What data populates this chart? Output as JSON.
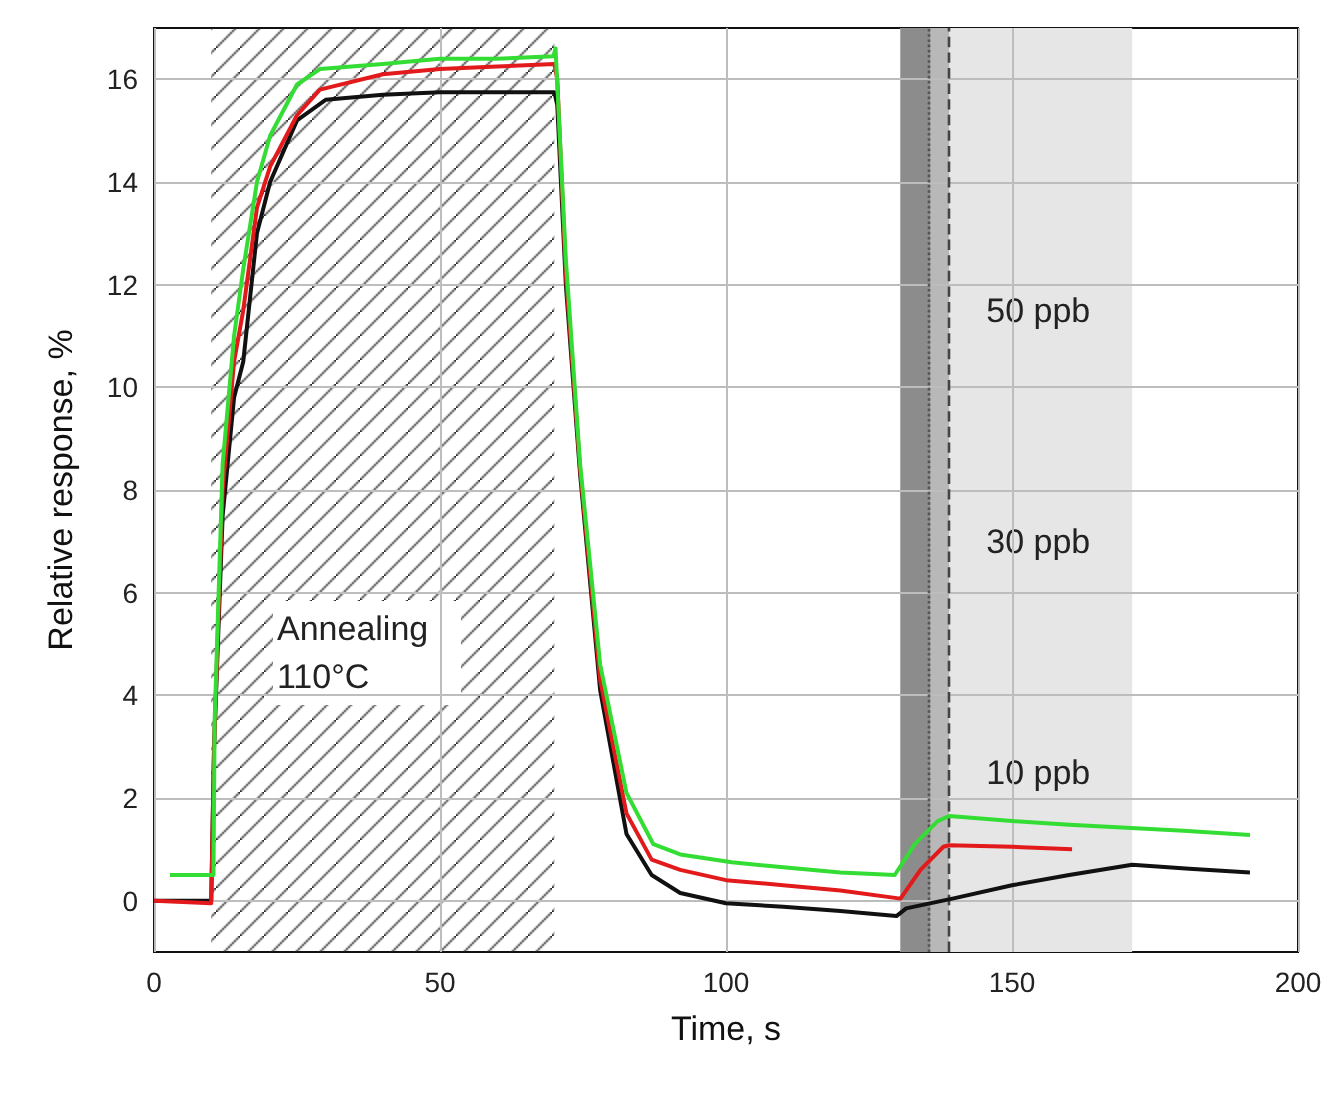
{
  "chart_data": {
    "type": "line",
    "xlabel": "Time, s",
    "ylabel": "Relative response, %",
    "xlim": [
      0,
      200
    ],
    "xticks": [
      0,
      50,
      100,
      150,
      200
    ],
    "ylim": [
      -1,
      17
    ],
    "yticks": [
      0,
      2,
      4,
      6,
      8,
      10,
      12,
      14,
      16
    ],
    "grid": true,
    "marker": "none",
    "line_style": "solid",
    "series": [
      {
        "color": "#111111",
        "x": [
          0,
          10,
          10.5,
          12,
          14,
          15.6,
          18,
          20.3,
          25,
          30,
          40,
          50,
          60,
          70,
          70.5,
          72,
          74.5,
          78,
          82.6,
          87,
          92,
          100,
          110,
          120,
          129.8,
          131.5,
          140,
          150,
          160,
          171,
          181,
          191.6
        ],
        "values": [
          0,
          0,
          3,
          7.5,
          9.8,
          10.5,
          13,
          14,
          15.2,
          15.6,
          15.7,
          15.75,
          15.75,
          15.75,
          15.5,
          12,
          8.3,
          4.1,
          1.3,
          0.5,
          0.15,
          -0.05,
          -0.12,
          -0.2,
          -0.3,
          -0.15,
          0.05,
          0.3,
          0.5,
          0.7,
          0.62,
          0.55
        ]
      },
      {
        "color": "#e31a1c",
        "x": [
          0,
          10,
          10.5,
          12,
          14,
          15.6,
          18,
          20.3,
          25,
          29,
          40,
          50,
          60,
          70,
          70.5,
          72,
          74.5,
          78,
          82.6,
          87,
          92,
          100,
          110,
          120,
          130.5,
          134,
          138,
          139,
          150,
          160.5
        ],
        "values": [
          0,
          -0.05,
          3,
          8,
          10.5,
          11.5,
          13.5,
          14.3,
          15.3,
          15.8,
          16.1,
          16.2,
          16.25,
          16.3,
          16,
          12.2,
          8.4,
          4.3,
          1.7,
          0.8,
          0.6,
          0.4,
          0.3,
          0.2,
          0.04,
          0.6,
          1.05,
          1.08,
          1.05,
          1.0
        ]
      },
      {
        "color": "#33dd33",
        "x": [
          2.8,
          10.4,
          10.6,
          12,
          14,
          15.6,
          18,
          20.3,
          25,
          29,
          40,
          50,
          60,
          69.8,
          70.2,
          72,
          74.5,
          78,
          82.6,
          87.3,
          92,
          101,
          110,
          120,
          129.5,
          133,
          137,
          139,
          150,
          160,
          170,
          180,
          191.6
        ],
        "values": [
          0.5,
          0.5,
          3.5,
          8.5,
          11,
          12.3,
          14,
          14.9,
          15.9,
          16.2,
          16.3,
          16.4,
          16.4,
          16.45,
          16.6,
          12.5,
          8.5,
          4.6,
          2.1,
          1.1,
          0.9,
          0.75,
          0.65,
          0.55,
          0.5,
          1.1,
          1.55,
          1.65,
          1.55,
          1.48,
          1.42,
          1.36,
          1.28
        ]
      }
    ],
    "bands": [
      {
        "axis": "x",
        "from": 10,
        "to": 70,
        "label": "Annealing 110°C",
        "color": "#222222"
      },
      {
        "axis": "x",
        "from": 130.5,
        "to": 171,
        "label": "10 ppb",
        "color": "#e6e6e6"
      },
      {
        "axis": "x",
        "from": 130.5,
        "to": 139,
        "label": "30 ppb",
        "color": "#b8b8b8"
      },
      {
        "axis": "x",
        "from": 130.5,
        "to": 135.7,
        "label": "50 ppb",
        "color": "#8c8c8c"
      }
    ],
    "ref_lines": [
      {
        "axis": "x",
        "value": 135.5,
        "color": "#555555",
        "line_style": "dotted"
      },
      {
        "axis": "x",
        "value": 139,
        "color": "#444444",
        "line_style": "dashed"
      }
    ]
  }
}
